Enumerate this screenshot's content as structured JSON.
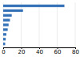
{
  "chart_data": {
    "type": "bar",
    "orientation": "horizontal",
    "categories": [
      null,
      null,
      null,
      null,
      null,
      null,
      null,
      null,
      null
    ],
    "values": [
      68000,
      22000,
      9500,
      7500,
      6000,
      5000,
      3500,
      2800,
      2200
    ],
    "color": "#3572b7",
    "xlim": [
      0,
      80000
    ],
    "xticks": [
      0,
      {
        "value": 20000,
        "label": "20"
      },
      {
        "value": 40000,
        "label": "40"
      },
      {
        "value": 60000,
        "label": "60"
      },
      {
        "value": 80000,
        "label": "80"
      }
    ],
    "grid": true,
    "tick_labels": "x"
  }
}
